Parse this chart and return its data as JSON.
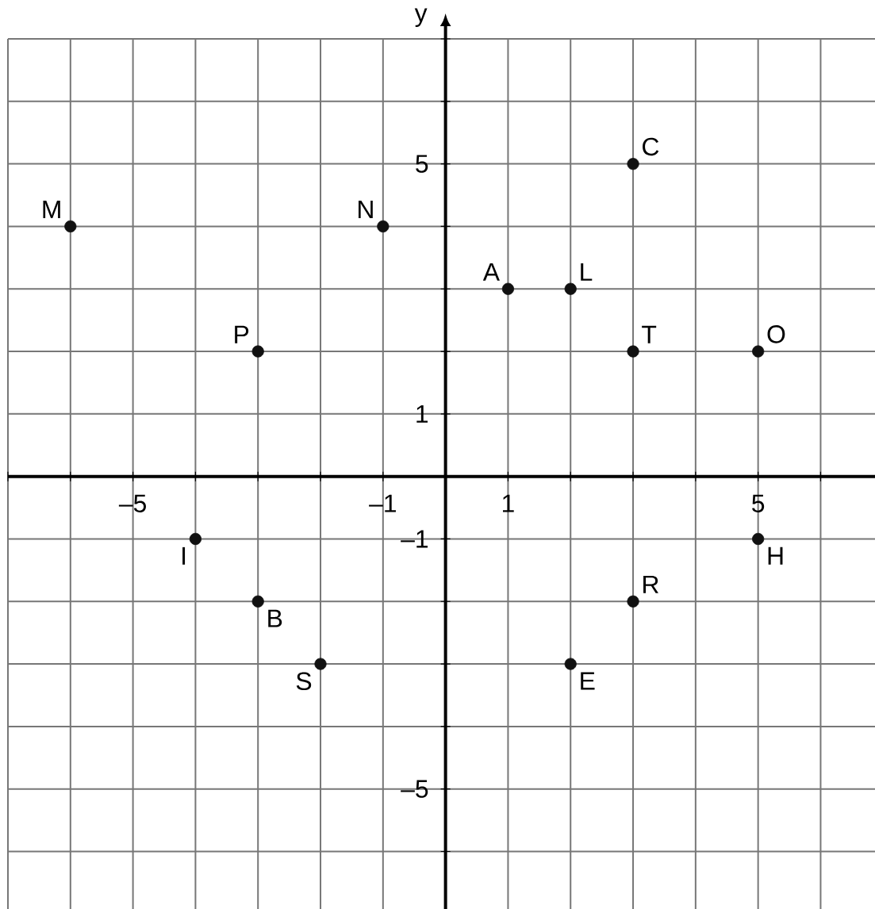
{
  "chart_data": {
    "type": "scatter",
    "ylabel": "y",
    "color": "#111111",
    "grid": true,
    "xlim": [
      -7,
      6.87
    ],
    "ylim": [
      -6.92,
      7
    ],
    "xticks": [
      {
        "value": -7,
        "label": null
      },
      {
        "value": -6,
        "label": null
      },
      {
        "value": -5,
        "label": "–5"
      },
      {
        "value": -4,
        "label": null
      },
      {
        "value": -3,
        "label": null
      },
      {
        "value": -2,
        "label": null
      },
      {
        "value": -1,
        "label": "–1"
      },
      {
        "value": 0,
        "label": null
      },
      1,
      {
        "value": 2,
        "label": null
      },
      {
        "value": 3,
        "label": null
      },
      {
        "value": 4,
        "label": null
      },
      5,
      {
        "value": 6,
        "label": null
      }
    ],
    "yticks": [
      {
        "value": -6,
        "label": null
      },
      {
        "value": -5,
        "label": "–5"
      },
      {
        "value": -4,
        "label": null
      },
      {
        "value": -3,
        "label": null
      },
      {
        "value": -2,
        "label": null
      },
      {
        "value": -1,
        "label": "–1"
      },
      {
        "value": 0,
        "label": null
      },
      1,
      {
        "value": 2,
        "label": null
      },
      {
        "value": 3,
        "label": null
      },
      {
        "value": 4,
        "label": null
      },
      5,
      {
        "value": 6,
        "label": null
      },
      {
        "value": 7,
        "label": null
      }
    ],
    "x": [
      -6,
      -1,
      3,
      1,
      2,
      -3,
      3,
      5,
      -4,
      5,
      -3,
      3,
      -2,
      2
    ],
    "values": [
      4,
      4,
      5,
      3,
      3,
      2,
      2,
      2,
      -1,
      -1,
      -2,
      -2,
      -3,
      -3
    ],
    "annotations": [
      {
        "text": "M",
        "x": -6,
        "y": 4
      },
      {
        "text": "N",
        "x": -1,
        "y": 4
      },
      {
        "text": "C",
        "x": 3,
        "y": 5
      },
      {
        "text": "A",
        "x": 1,
        "y": 3
      },
      {
        "text": "L",
        "x": 2,
        "y": 3
      },
      {
        "text": "P",
        "x": -3,
        "y": 2
      },
      {
        "text": "T",
        "x": 3,
        "y": 2
      },
      {
        "text": "O",
        "x": 5,
        "y": 2
      },
      {
        "text": "I",
        "x": -4,
        "y": -1
      },
      {
        "text": "H",
        "x": 5,
        "y": -1
      },
      {
        "text": "B",
        "x": -3,
        "y": -2
      },
      {
        "text": "R",
        "x": 3,
        "y": -2
      },
      {
        "text": "S",
        "x": -2,
        "y": -3
      },
      {
        "text": "E",
        "x": 2,
        "y": -3
      }
    ]
  }
}
